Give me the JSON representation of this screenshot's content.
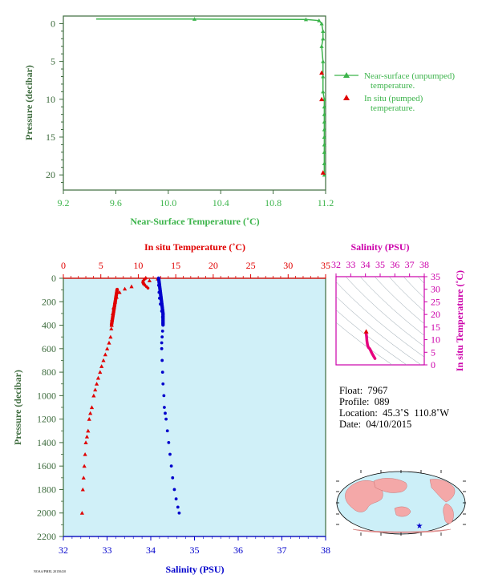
{
  "chart_data": [
    {
      "type": "line",
      "xlabel": "Near-Surface Temperature (˚C)",
      "ylabel": "Pressure (decibar)",
      "xlim": [
        9.2,
        11.2
      ],
      "ylim": [
        22,
        -1
      ],
      "xticks": [
        "9.2",
        "9.6",
        "10.0",
        "10.4",
        "10.8",
        "11.2"
      ],
      "yticks": [
        "0",
        "5",
        "10",
        "15",
        "20"
      ],
      "legend_position": "right",
      "series": [
        {
          "name": "Near-surface (unpumped) temperature.",
          "color": "#3cb44b",
          "marker": "triangle",
          "x": [
            9.45,
            10.2,
            11.05,
            11.15,
            11.17,
            11.18,
            11.18,
            11.17,
            11.18,
            11.18,
            11.18,
            11.19,
            11.19,
            11.19,
            11.19,
            11.19,
            11.19,
            11.19,
            11.19,
            11.19,
            11.19
          ],
          "y": [
            -0.6,
            -0.6,
            -0.55,
            -0.4,
            0.0,
            1.0,
            2.0,
            3.0,
            5.0,
            7.0,
            9.0,
            10.0,
            11.0,
            12.0,
            13.0,
            14.0,
            15.0,
            16.0,
            17.0,
            18.5,
            20.0
          ]
        },
        {
          "name": "In situ (pumped) temperature.",
          "color": "#e00000",
          "marker": "triangle",
          "x": [
            11.17,
            11.17,
            11.18
          ],
          "y": [
            6.5,
            10.0,
            19.7
          ]
        }
      ]
    },
    {
      "type": "scatter",
      "ylabel": "Pressure (decibar)",
      "ylim": [
        2200,
        0
      ],
      "yticks": [
        "0",
        "200",
        "400",
        "600",
        "800",
        "1000",
        "1200",
        "1400",
        "1600",
        "1800",
        "2000",
        "2200"
      ],
      "top_axis": {
        "label": "In situ Temperature (˚C)",
        "range": [
          0,
          35
        ],
        "ticks": [
          "0",
          "5",
          "10",
          "15",
          "20",
          "25",
          "30",
          "35"
        ],
        "color": "#e00000"
      },
      "bottom_axis": {
        "label": "Salinity (PSU)",
        "range": [
          32,
          38
        ],
        "ticks": [
          "32",
          "33",
          "34",
          "35",
          "36",
          "37",
          "38"
        ],
        "color": "#0000cc"
      },
      "background": "#d0f0f8",
      "series": [
        {
          "name": "In situ Temperature",
          "color": "#e00000",
          "marker": "triangle",
          "x": [
            12.6,
            11.5,
            10.8,
            9.1,
            8.2,
            7.5,
            7.1,
            6.9,
            6.7,
            6.6,
            6.5,
            6.45,
            6.4,
            6.3,
            6.1,
            5.85,
            5.6,
            5.35,
            5.1,
            4.9,
            4.65,
            4.45,
            4.25,
            4.05,
            3.8,
            3.6,
            3.45,
            3.3,
            3.15,
            3.0,
            2.9,
            2.8,
            2.7,
            2.6,
            2.5
          ],
          "y": [
            5,
            20,
            45,
            70,
            90,
            120,
            160,
            200,
            250,
            300,
            350,
            400,
            430,
            500,
            550,
            600,
            650,
            700,
            750,
            800,
            850,
            900,
            950,
            1000,
            1100,
            1150,
            1200,
            1300,
            1350,
            1400,
            1500,
            1600,
            1700,
            1800,
            2000
          ]
        },
        {
          "name": "Salinity",
          "color": "#0000cc",
          "marker": "circle",
          "x": [
            34.18,
            34.18,
            34.19,
            34.2,
            34.22,
            34.25,
            34.27,
            34.28,
            34.28,
            34.27,
            34.26,
            34.25,
            34.25,
            34.26,
            34.27,
            34.28,
            34.3,
            34.31,
            34.33,
            34.35,
            34.38,
            34.41,
            34.44,
            34.47,
            34.5,
            34.54,
            34.58,
            34.62,
            34.65
          ],
          "y": [
            10,
            60,
            120,
            170,
            220,
            280,
            330,
            380,
            400,
            450,
            500,
            550,
            600,
            700,
            800,
            900,
            1000,
            1100,
            1150,
            1200,
            1300,
            1400,
            1500,
            1600,
            1700,
            1800,
            1880,
            1950,
            2000
          ]
        }
      ]
    },
    {
      "type": "scatter",
      "top_axis": {
        "label": "Salinity (PSU)",
        "ticks": [
          "32",
          "33",
          "34",
          "35",
          "36",
          "37",
          "38"
        ],
        "range": [
          32,
          38
        ],
        "color": "#cc00aa"
      },
      "right_axis": {
        "label": "In situ Temperature (˚C)",
        "ticks": [
          "0",
          "5",
          "10",
          "15",
          "20",
          "25",
          "30",
          "35"
        ],
        "range": [
          0,
          35
        ],
        "color": "#cc00aa"
      },
      "series": [
        {
          "name": "T-S",
          "color": "#e6007e",
          "x": [
            34.05,
            34.08,
            34.1,
            34.14,
            34.18,
            34.22,
            34.28,
            34.33,
            34.38,
            34.45,
            34.52,
            34.6,
            34.65
          ],
          "y": [
            12.6,
            11.0,
            9.5,
            8.0,
            7.2,
            6.8,
            6.5,
            6.0,
            5.3,
            4.5,
            3.8,
            3.0,
            2.5
          ]
        }
      ]
    }
  ],
  "float_info": {
    "float": "Float:  7967",
    "profile": "Profile:  089",
    "location": "Location:  45.3˚S  110.8˚W",
    "date": "Date:  04/10/2015"
  },
  "footer_text": "NOAA/PMEL 20150410",
  "colors": {
    "green": "#3cb44b",
    "red": "#e00000",
    "blue": "#0000cc",
    "magenta": "#cc00aa",
    "panel_bg": "#d0f0f8",
    "axis_green": "#3d6b3d"
  }
}
